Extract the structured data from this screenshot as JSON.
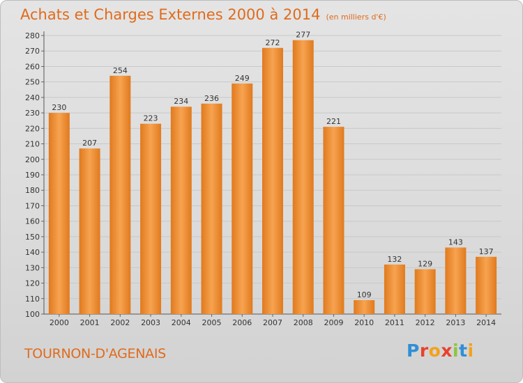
{
  "header": {
    "title": "Achats et Charges Externes 2000 à 2014",
    "subtitle": "(en milliers d'€)"
  },
  "footer": {
    "commune": "TOURNON-D'AGENAIS",
    "logo_text": "Proxiti",
    "logo_colors": [
      "#2f8fd6",
      "#e8412c",
      "#f3a11c",
      "#e8412c",
      "#8cc63f",
      "#2f8fd6",
      "#f3a11c"
    ]
  },
  "colors": {
    "bar_light": "#f7a350",
    "bar_dark": "#e07a1e",
    "accent": "#e06b1c",
    "grid": "#c8c8c8"
  },
  "chart_data": {
    "type": "bar",
    "categories": [
      "2000",
      "2001",
      "2002",
      "2003",
      "2004",
      "2005",
      "2006",
      "2007",
      "2008",
      "2009",
      "2010",
      "2011",
      "2012",
      "2013",
      "2014"
    ],
    "values": [
      230,
      207,
      254,
      223,
      234,
      236,
      249,
      272,
      277,
      221,
      109,
      132,
      129,
      143,
      137
    ],
    "title": "Achats et Charges Externes 2000 à 2014",
    "subtitle": "(en milliers d'€)",
    "ylim": [
      100,
      280
    ],
    "yticks": [
      100,
      110,
      120,
      130,
      140,
      150,
      160,
      170,
      180,
      190,
      200,
      210,
      220,
      230,
      240,
      250,
      260,
      270,
      280
    ],
    "grid": true,
    "data_labels": true
  }
}
